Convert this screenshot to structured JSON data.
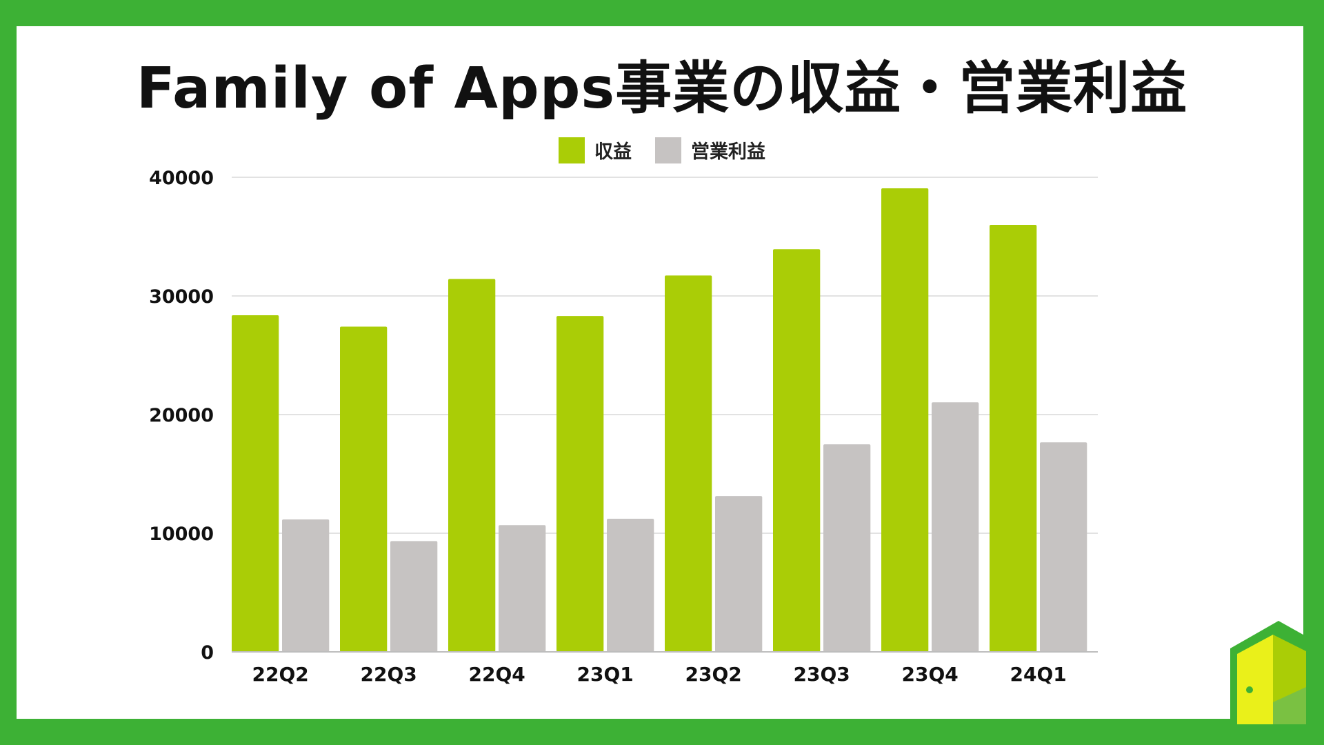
{
  "title": "Family of Apps事業の収益・営業利益",
  "colors": {
    "background_border": "#3db135",
    "revenue": "#aacd06",
    "operating_income": "#c6c3c2",
    "gridline": "#d9d9d9"
  },
  "icons": [
    "door-logo-icon"
  ],
  "chart_data": {
    "type": "bar",
    "title": "Family of Apps事業の収益・営業利益",
    "categories": [
      "22Q2",
      "22Q3",
      "22Q4",
      "23Q1",
      "23Q2",
      "23Q3",
      "23Q4",
      "24Q1"
    ],
    "series": [
      {
        "name": "収益",
        "values": [
          28370,
          27410,
          31430,
          28310,
          31720,
          33940,
          39070,
          35990
        ]
      },
      {
        "name": "営業利益",
        "values": [
          11160,
          9340,
          10680,
          11220,
          13130,
          17490,
          21030,
          17660
        ]
      }
    ],
    "yticks": [
      0,
      10000,
      20000,
      30000,
      40000
    ],
    "ylim": [
      0,
      40000
    ],
    "xlabel": "",
    "ylabel": "",
    "grid": true,
    "legend_position": "top-center"
  }
}
